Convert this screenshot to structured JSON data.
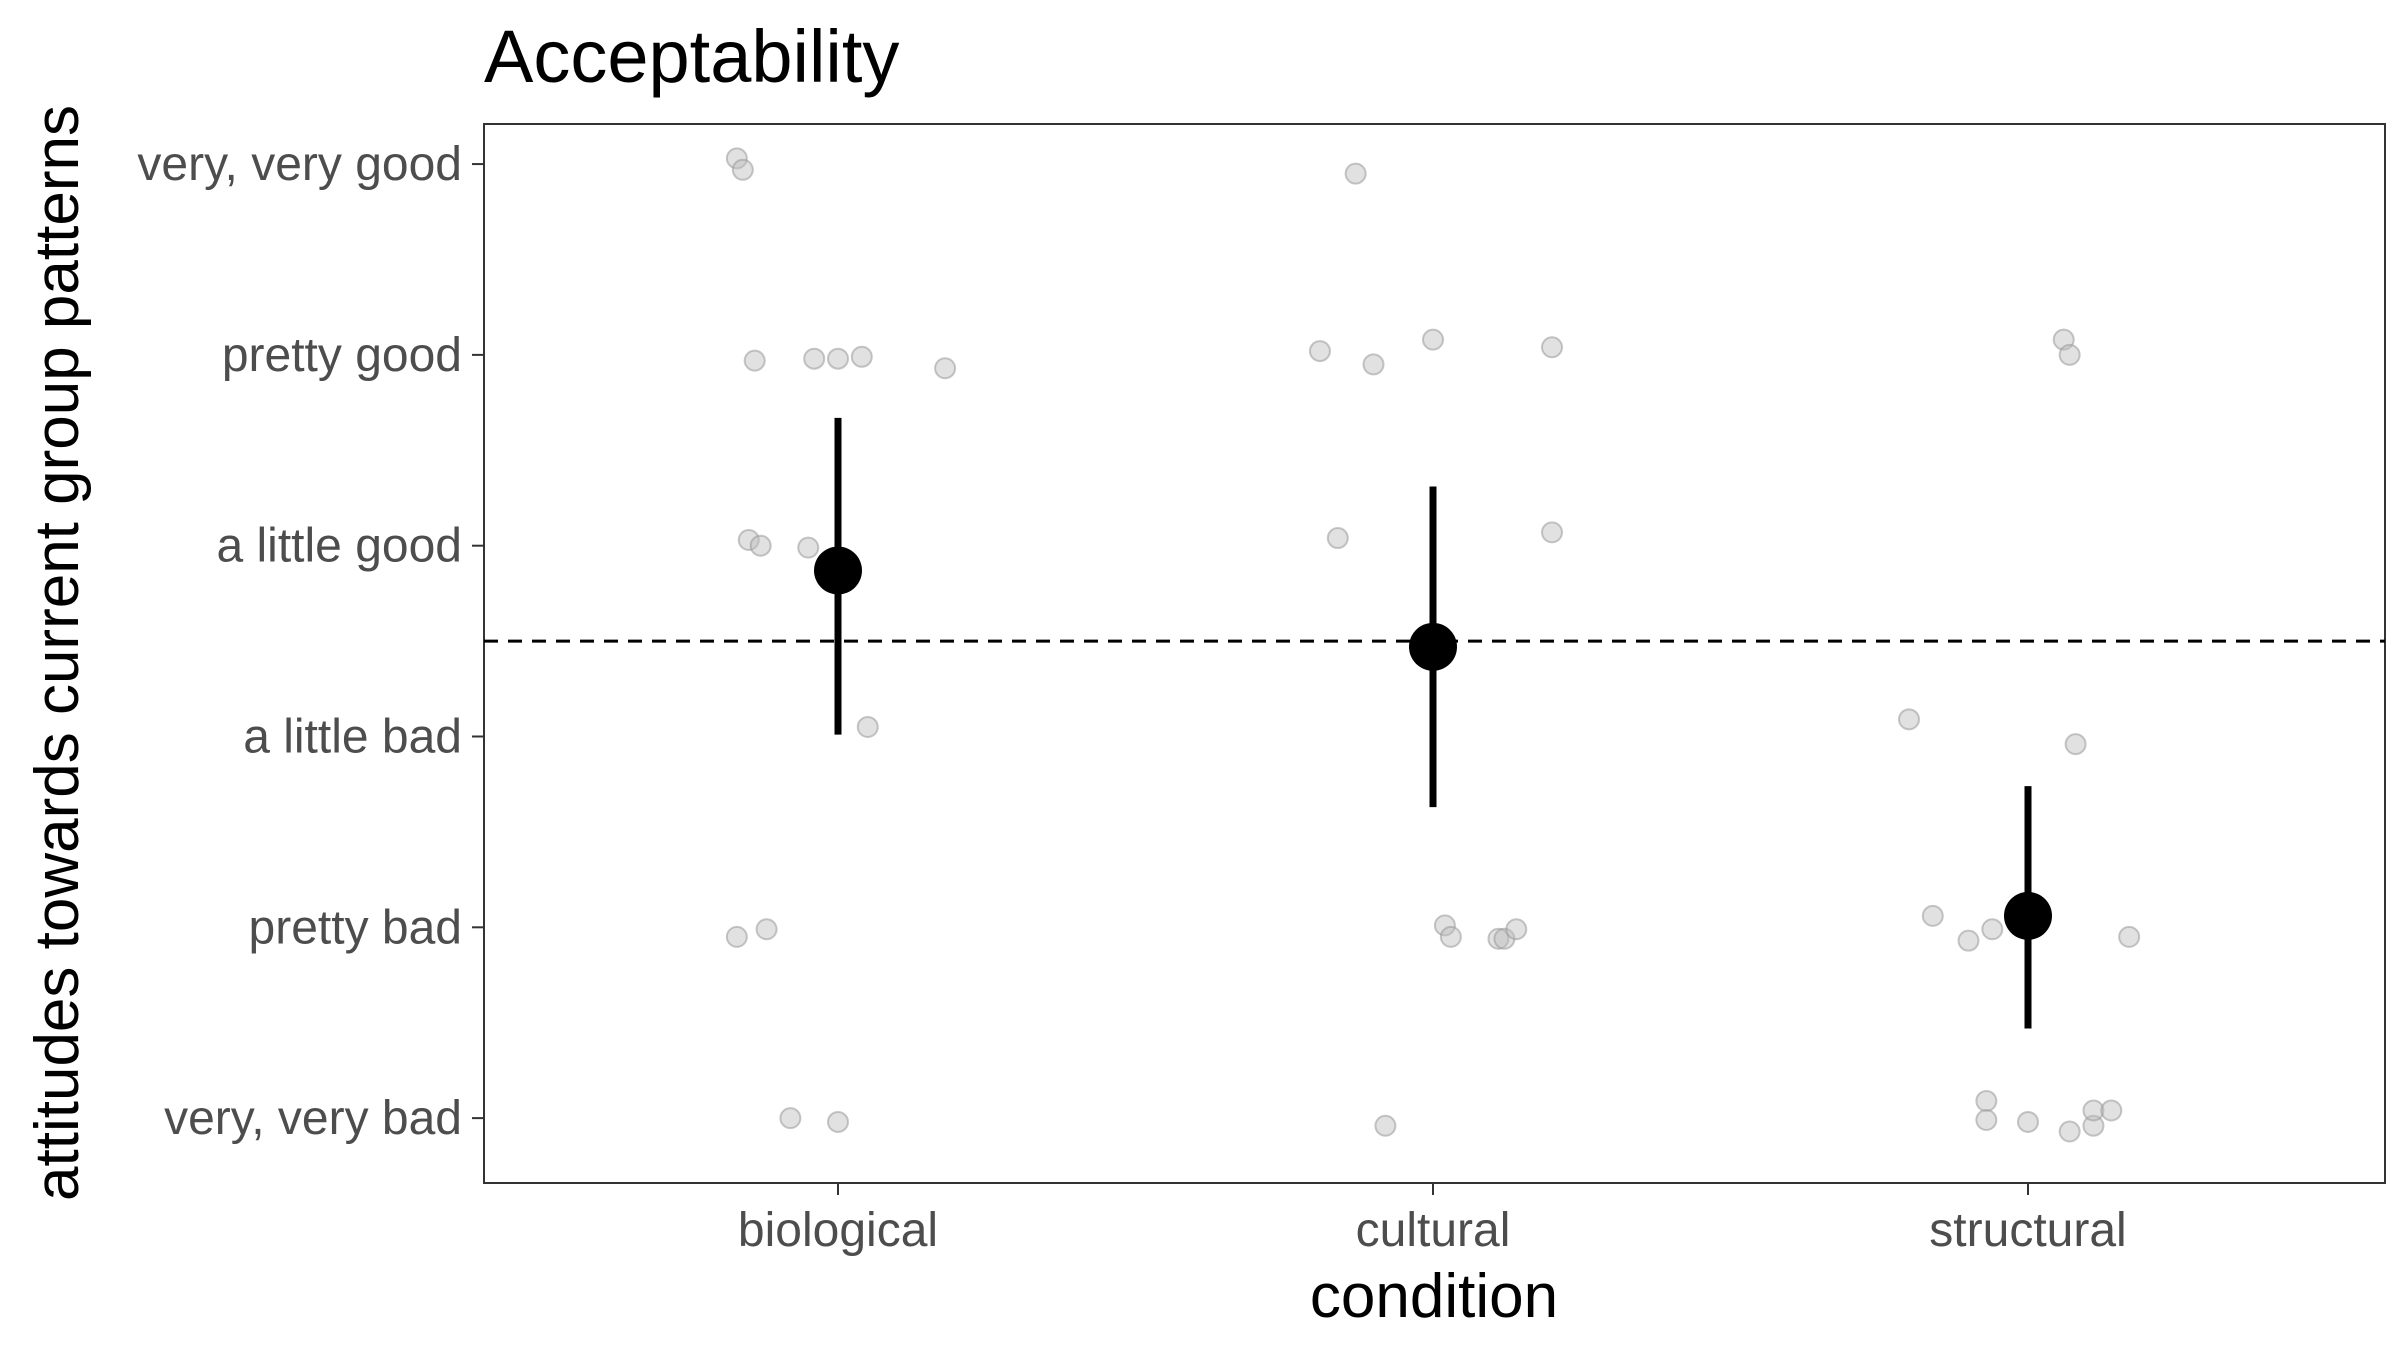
{
  "chart_data": {
    "type": "scatter",
    "title": "Acceptability",
    "xlabel": "condition",
    "ylabel": "attitudes towards current group patterns",
    "categories": [
      "biological",
      "cultural",
      "structural"
    ],
    "y_levels": [
      "very, very bad",
      "pretty bad",
      "a little bad",
      "a little good",
      "pretty good",
      "very, very good"
    ],
    "ylim": [
      0.66,
      6.21
    ],
    "reference_line": {
      "y": 3.5,
      "style": "dashed"
    },
    "grid": false,
    "legend": "none",
    "point_color": "#bdbdbd",
    "summary_color": "#000000",
    "raw_points": [
      {
        "category": "biological",
        "jitter": -0.17,
        "y": 6.03
      },
      {
        "category": "biological",
        "jitter": -0.16,
        "y": 5.97
      },
      {
        "category": "biological",
        "jitter": -0.14,
        "y": 4.97
      },
      {
        "category": "biological",
        "jitter": -0.04,
        "y": 4.98
      },
      {
        "category": "biological",
        "jitter": 0.0,
        "y": 4.98
      },
      {
        "category": "biological",
        "jitter": 0.04,
        "y": 4.99
      },
      {
        "category": "biological",
        "jitter": 0.18,
        "y": 4.93
      },
      {
        "category": "biological",
        "jitter": -0.15,
        "y": 4.03
      },
      {
        "category": "biological",
        "jitter": -0.13,
        "y": 4.0
      },
      {
        "category": "biological",
        "jitter": -0.05,
        "y": 3.99
      },
      {
        "category": "biological",
        "jitter": 0.05,
        "y": 3.05
      },
      {
        "category": "biological",
        "jitter": -0.17,
        "y": 1.95
      },
      {
        "category": "biological",
        "jitter": -0.12,
        "y": 1.99
      },
      {
        "category": "biological",
        "jitter": -0.08,
        "y": 1.0
      },
      {
        "category": "biological",
        "jitter": 0.0,
        "y": 0.98
      },
      {
        "category": "cultural",
        "jitter": -0.13,
        "y": 5.95
      },
      {
        "category": "cultural",
        "jitter": -0.19,
        "y": 5.02
      },
      {
        "category": "cultural",
        "jitter": -0.1,
        "y": 4.95
      },
      {
        "category": "cultural",
        "jitter": 0.0,
        "y": 5.08
      },
      {
        "category": "cultural",
        "jitter": 0.2,
        "y": 5.04
      },
      {
        "category": "cultural",
        "jitter": -0.16,
        "y": 4.04
      },
      {
        "category": "cultural",
        "jitter": 0.2,
        "y": 4.07
      },
      {
        "category": "cultural",
        "jitter": 0.02,
        "y": 2.01
      },
      {
        "category": "cultural",
        "jitter": 0.03,
        "y": 1.95
      },
      {
        "category": "cultural",
        "jitter": 0.11,
        "y": 1.94
      },
      {
        "category": "cultural",
        "jitter": 0.12,
        "y": 1.94
      },
      {
        "category": "cultural",
        "jitter": 0.14,
        "y": 1.99
      },
      {
        "category": "cultural",
        "jitter": -0.08,
        "y": 0.96
      },
      {
        "category": "structural",
        "jitter": 0.06,
        "y": 5.08
      },
      {
        "category": "structural",
        "jitter": 0.07,
        "y": 5.0
      },
      {
        "category": "structural",
        "jitter": -0.2,
        "y": 3.09
      },
      {
        "category": "structural",
        "jitter": 0.08,
        "y": 2.96
      },
      {
        "category": "structural",
        "jitter": -0.16,
        "y": 2.06
      },
      {
        "category": "structural",
        "jitter": -0.1,
        "y": 1.93
      },
      {
        "category": "structural",
        "jitter": -0.06,
        "y": 1.99
      },
      {
        "category": "structural",
        "jitter": 0.17,
        "y": 1.95
      },
      {
        "category": "structural",
        "jitter": -0.07,
        "y": 1.09
      },
      {
        "category": "structural",
        "jitter": -0.07,
        "y": 0.99
      },
      {
        "category": "structural",
        "jitter": 0.0,
        "y": 0.98
      },
      {
        "category": "structural",
        "jitter": 0.07,
        "y": 0.93
      },
      {
        "category": "structural",
        "jitter": 0.11,
        "y": 0.96
      },
      {
        "category": "structural",
        "jitter": 0.11,
        "y": 1.04
      },
      {
        "category": "structural",
        "jitter": 0.14,
        "y": 1.04
      }
    ],
    "summary": [
      {
        "category": "biological",
        "mean": 3.87,
        "lower": 3.01,
        "upper": 4.67
      },
      {
        "category": "cultural",
        "mean": 3.47,
        "lower": 2.63,
        "upper": 4.31
      },
      {
        "category": "structural",
        "mean": 2.06,
        "lower": 1.47,
        "upper": 2.74
      }
    ]
  }
}
